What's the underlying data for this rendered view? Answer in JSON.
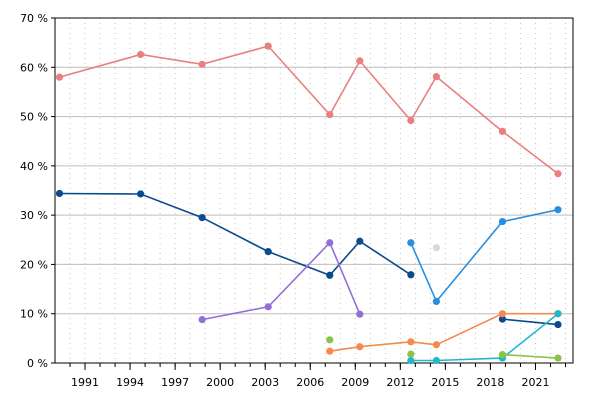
{
  "chart_data": {
    "type": "line",
    "title": "",
    "xlabel": "",
    "ylabel": "",
    "xlim": [
      1989,
      2023.5
    ],
    "ylim": [
      0,
      70
    ],
    "grid": true,
    "x_ticks": [
      1991,
      1994,
      1997,
      2000,
      2003,
      2006,
      2009,
      2012,
      2015,
      2018,
      2021
    ],
    "x_tick_labels": [
      "1991",
      "1994",
      "1997",
      "2000",
      "2003",
      "2006",
      "2009",
      "2012",
      "2015",
      "2018",
      "2021"
    ],
    "y_ticks": [
      0,
      10,
      20,
      30,
      40,
      50,
      60,
      70
    ],
    "y_tick_labels": [
      "0 %",
      "10 %",
      "20 %",
      "30 %",
      "40 %",
      "50 %",
      "60 %",
      "70 %"
    ],
    "series": [
      {
        "color": "#e88080",
        "x": [
          1989.3,
          1994.7,
          1998.8,
          2003.2,
          2007.3,
          2009.3,
          2012.7,
          2014.4,
          2018.8,
          2022.5
        ],
        "y": [
          58.0,
          62.6,
          60.6,
          64.3,
          50.4,
          61.3,
          49.2,
          58.1,
          47.0,
          38.4
        ]
      },
      {
        "color": "#0b4a8c",
        "x": [
          1989.3,
          1994.7,
          1998.8,
          2003.2,
          2007.3,
          2009.3,
          2012.7
        ],
        "y": [
          34.4,
          34.3,
          29.5,
          22.6,
          17.8,
          24.7,
          17.9
        ]
      },
      {
        "color": "#0b4a8c",
        "x": [
          2018.8,
          2022.5
        ],
        "y": [
          8.9,
          7.8
        ]
      },
      {
        "color": "#9370d8",
        "x": [
          1998.8,
          2003.2,
          2007.3,
          2009.3
        ],
        "y": [
          8.8,
          11.4,
          24.4,
          9.9
        ]
      },
      {
        "color": "#2a8ee0",
        "x": [
          2012.7,
          2014.4,
          2018.8,
          2022.5
        ],
        "y": [
          24.4,
          12.5,
          28.7,
          31.1
        ]
      },
      {
        "color": "#f58a4c",
        "x": [
          2007.3,
          2009.3,
          2012.7,
          2014.4,
          2018.8,
          2022.5
        ],
        "y": [
          2.4,
          3.3,
          4.3,
          3.7,
          10.0,
          10.0
        ]
      },
      {
        "color": "#22b8cc",
        "x": [
          2012.7,
          2014.4,
          2018.8,
          2022.5
        ],
        "y": [
          0.5,
          0.5,
          1.0,
          10.0
        ]
      },
      {
        "color": "#8bc34a",
        "x": [
          2018.8,
          2022.5
        ],
        "y": [
          1.7,
          1.0
        ]
      },
      {
        "color": "#8bc34a",
        "x": [
          2007.3
        ],
        "y": [
          4.7
        ]
      },
      {
        "color": "#8bc34a",
        "x": [
          2012.7
        ],
        "y": [
          1.8
        ]
      },
      {
        "color": "#d9d9d9",
        "x": [
          2014.4
        ],
        "y": [
          23.4
        ]
      }
    ]
  }
}
